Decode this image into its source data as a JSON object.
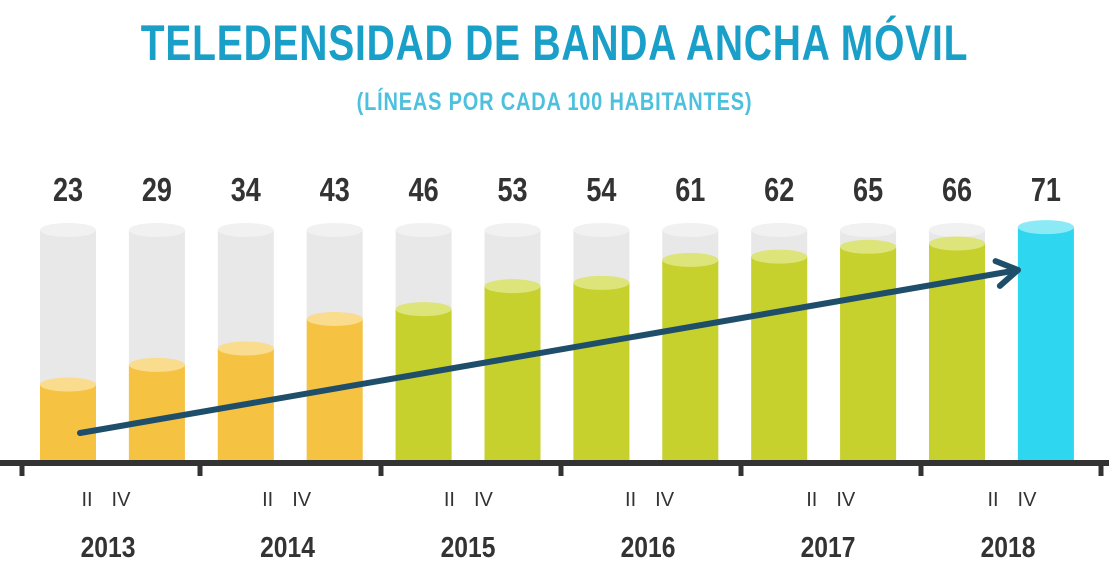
{
  "colors": {
    "title": "#1aa0c8",
    "subtitle": "#4cc0dd",
    "bar_track": "#e8e8e8",
    "bar_track_top": "#f1f1f1",
    "bar_2013_2014": "#f6c242",
    "bar_2013_2014_top": "#fadc8f",
    "bar_2015_2017": "#c6d12d",
    "bar_2015_2017_top": "#dde47a",
    "bar_2018": "#2fd6ef",
    "bar_2018_top": "#8ceaf7",
    "arrow": "#1f4e6b",
    "axis": "#333333",
    "label": "#333333"
  },
  "chart_data": {
    "type": "bar",
    "title": "TELEDENSIDAD DE BANDA ANCHA MÓVIL",
    "subtitle": "(LÍNEAS POR CADA 100 HABITANTES)",
    "xlabel": "",
    "ylabel": "",
    "ylim": [
      0,
      80
    ],
    "grid": false,
    "legend": "none",
    "categories": [
      "II 2013",
      "IV 2013",
      "II 2014",
      "IV 2014",
      "II 2015",
      "IV 2015",
      "II 2016",
      "IV 2016",
      "II 2017",
      "IV 2017",
      "II 2018",
      "IV 2018"
    ],
    "values": [
      23,
      29,
      34,
      43,
      46,
      53,
      54,
      61,
      62,
      65,
      66,
      71
    ],
    "bar_groups": [
      "2013-2014",
      "2013-2014",
      "2013-2014",
      "2013-2014",
      "2015-2017",
      "2015-2017",
      "2015-2017",
      "2015-2017",
      "2015-2017",
      "2015-2017",
      "2015-2017",
      "2018"
    ],
    "years": [
      {
        "label": "2013",
        "quarters": [
          "II",
          "IV"
        ]
      },
      {
        "label": "2014",
        "quarters": [
          "II",
          "IV"
        ]
      },
      {
        "label": "2015",
        "quarters": [
          "II",
          "IV"
        ]
      },
      {
        "label": "2016",
        "quarters": [
          "II",
          "IV"
        ]
      },
      {
        "label": "2017",
        "quarters": [
          "II",
          "IV"
        ]
      },
      {
        "label": "2018",
        "quarters": [
          "II",
          "IV"
        ]
      }
    ],
    "annotations": [
      "trend arrow rising from first to last bar"
    ]
  }
}
